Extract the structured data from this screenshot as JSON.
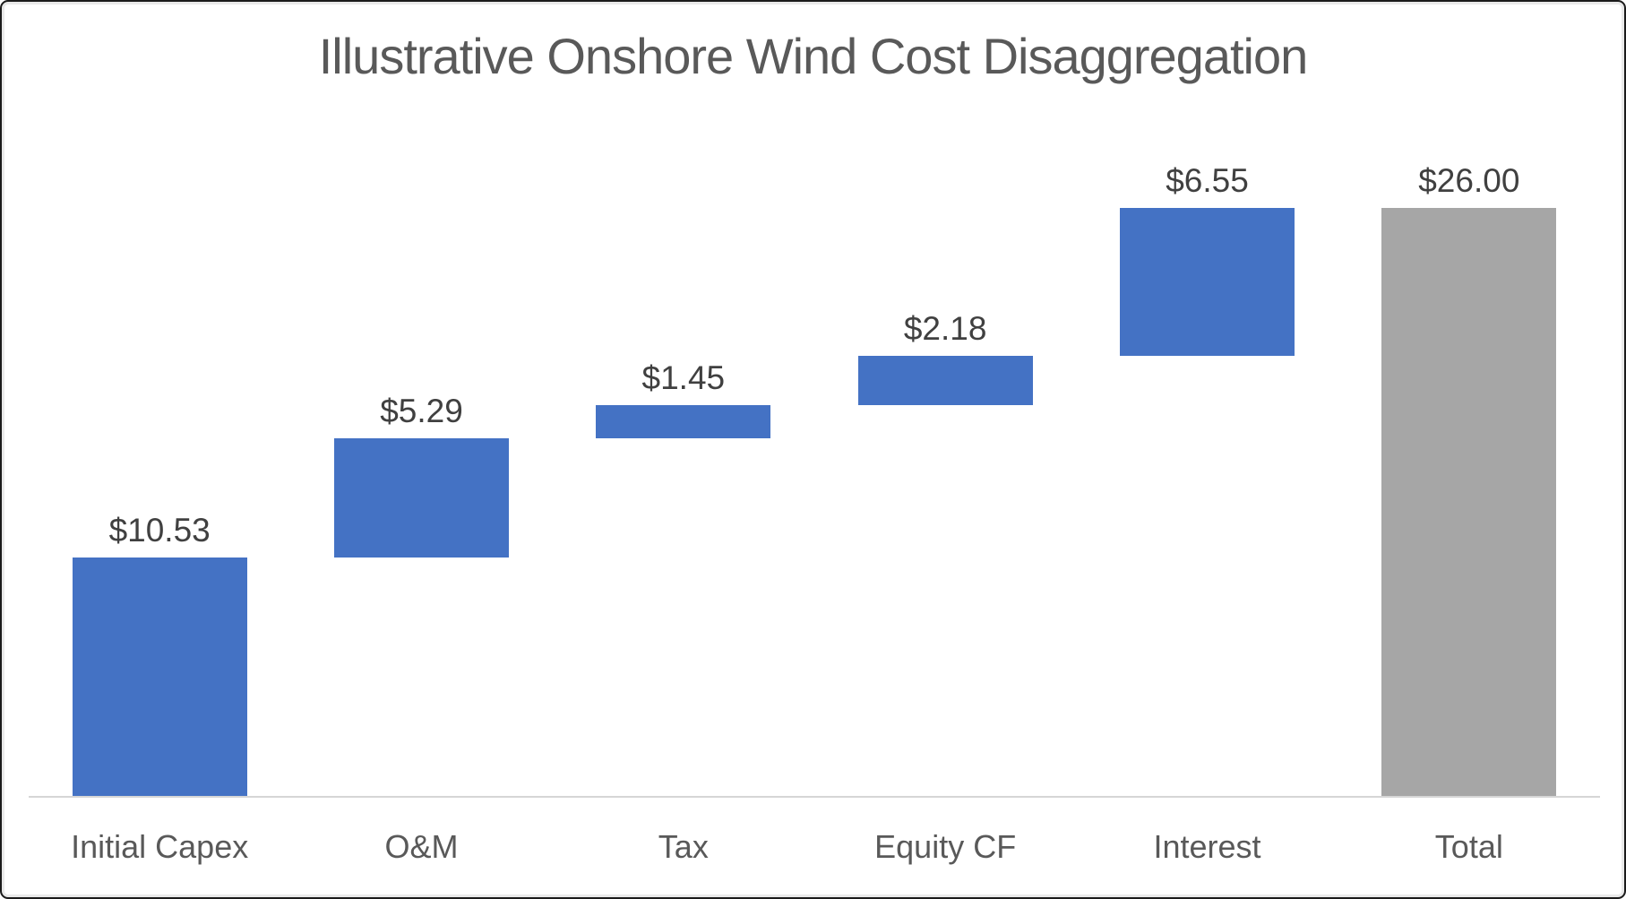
{
  "chart_data": {
    "type": "bar",
    "subtype": "waterfall",
    "title": "Illustrative Onshore Wind Cost Disaggregation",
    "categories": [
      "Initial Capex",
      "O&M",
      "Tax",
      "Equity CF",
      "Interest",
      "Total"
    ],
    "values": [
      10.53,
      5.29,
      1.45,
      2.18,
      6.55,
      26.0
    ],
    "is_total": [
      false,
      false,
      false,
      false,
      false,
      true
    ],
    "data_labels": [
      "$10.53",
      "$5.29",
      "$1.45",
      "$2.18",
      "$6.55",
      "$26.00"
    ],
    "xlabel": "",
    "ylabel": "",
    "ylim": [
      0,
      26
    ],
    "grid": false,
    "legend": false,
    "colors": {
      "increase_bar": "#4472C4",
      "total_bar": "#A6A6A6",
      "title_text": "#595959",
      "data_label_text": "#404040",
      "category_label_text": "#595959",
      "axis_line": "#D6D6D6"
    }
  }
}
